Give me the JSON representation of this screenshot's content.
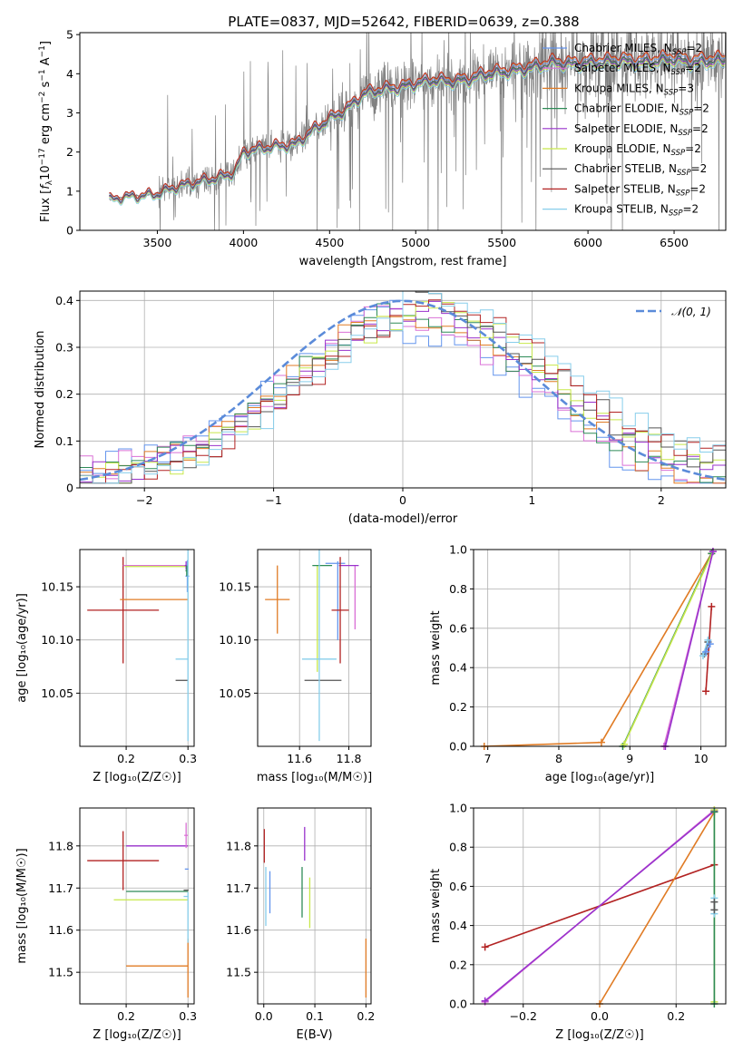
{
  "title": "PLATE=0837, MJD=52642, FIBERID=0639, z=0.388",
  "colors": {
    "chabrier_miles": "#6495ED",
    "salpeter_miles": "#DA70D6",
    "kroupa_miles": "#E07B24",
    "chabrier_elodie": "#2E8B57",
    "salpeter_elodie": "#9932CC",
    "kroupa_elodie": "#C7E84A",
    "chabrier_stelib": "#555555",
    "salpeter_stelib": "#B22222",
    "kroupa_stelib": "#87CEEB",
    "data": "#808080"
  },
  "legend": [
    {
      "label": "Chabrier MILES, N",
      "sub": "SSP",
      "val": "=2",
      "color_key": "chabrier_miles"
    },
    {
      "label": "Salpeter MILES, N",
      "sub": "SSP",
      "val": "=2",
      "color_key": "salpeter_miles"
    },
    {
      "label": "Kroupa MILES, N",
      "sub": "SSP",
      "val": "=3",
      "color_key": "kroupa_miles"
    },
    {
      "label": "Chabrier ELODIE, N",
      "sub": "SSP",
      "val": "=2",
      "color_key": "chabrier_elodie"
    },
    {
      "label": "Salpeter ELODIE, N",
      "sub": "SSP",
      "val": "=2",
      "color_key": "salpeter_elodie"
    },
    {
      "label": "Kroupa ELODIE, N",
      "sub": "SSP",
      "val": "=2",
      "color_key": "kroupa_elodie"
    },
    {
      "label": "Chabrier STELIB, N",
      "sub": "SSP",
      "val": "=2",
      "color_key": "chabrier_stelib"
    },
    {
      "label": "Salpeter STELIB, N",
      "sub": "SSP",
      "val": "=2",
      "color_key": "salpeter_stelib"
    },
    {
      "label": "Kroupa STELIB, N",
      "sub": "SSP",
      "val": "=2",
      "color_key": "kroupa_stelib"
    }
  ],
  "chart_data": [
    {
      "id": "spectrum",
      "type": "line",
      "xlabel": "wavelength [Angstrom, rest frame]",
      "ylabel": "Flux [f_λ 10^-17 erg cm^-2 s^-1 A^-1]",
      "xlim": [
        3050,
        6800
      ],
      "ylim": [
        0,
        5.05
      ],
      "xticks": [
        3500,
        4000,
        4500,
        5000,
        5500,
        6000,
        6500
      ],
      "yticks": [
        0,
        1,
        2,
        3,
        4,
        5
      ],
      "grid": false,
      "legend_position": "top-right",
      "data_range": [
        3220,
        6800
      ],
      "continuum": [
        [
          3220,
          0.78
        ],
        [
          3300,
          0.85
        ],
        [
          3400,
          0.88
        ],
        [
          3500,
          0.93
        ],
        [
          3600,
          1.1
        ],
        [
          3700,
          1.2
        ],
        [
          3800,
          1.3
        ],
        [
          3900,
          1.4
        ],
        [
          3950,
          1.5
        ],
        [
          4000,
          2.0
        ],
        [
          4100,
          2.1
        ],
        [
          4200,
          2.15
        ],
        [
          4300,
          2.2
        ],
        [
          4400,
          2.55
        ],
        [
          4500,
          2.85
        ],
        [
          4600,
          3.1
        ],
        [
          4700,
          3.5
        ],
        [
          4800,
          3.6
        ],
        [
          4900,
          3.65
        ],
        [
          5000,
          3.75
        ],
        [
          5100,
          3.85
        ],
        [
          5200,
          3.8
        ],
        [
          5300,
          3.85
        ],
        [
          5400,
          4.0
        ],
        [
          5500,
          4.05
        ],
        [
          5600,
          4.1
        ],
        [
          5700,
          4.2
        ],
        [
          5800,
          4.3
        ],
        [
          5900,
          4.25
        ],
        [
          6000,
          4.3
        ],
        [
          6100,
          4.32
        ],
        [
          6200,
          4.35
        ],
        [
          6300,
          4.3
        ],
        [
          6400,
          4.35
        ],
        [
          6500,
          4.4
        ],
        [
          6600,
          4.3
        ],
        [
          6700,
          4.35
        ],
        [
          6800,
          4.35
        ]
      ],
      "model_offsets": {
        "chabrier_miles": 0.05,
        "salpeter_miles": 0.0,
        "kroupa_miles": 0.08,
        "chabrier_elodie": -0.02,
        "salpeter_elodie": -0.05,
        "kroupa_elodie": -0.08,
        "chabrier_stelib": 0.0,
        "salpeter_stelib": 0.1,
        "kroupa_stelib": -0.12
      }
    },
    {
      "id": "residuals",
      "type": "step",
      "xlabel": "(data-model)/error",
      "ylabel": "Normed distribution",
      "xlim": [
        -2.5,
        2.5
      ],
      "ylim": [
        0,
        0.42
      ],
      "xticks": [
        -2,
        -1,
        0,
        1,
        2
      ],
      "yticks": [
        0.0,
        0.1,
        0.2,
        0.3,
        0.4
      ],
      "grid": true,
      "legend_position": "top-right",
      "gaussian_label": "𝒩(0, 1)",
      "gaussian_color": "#5B8BD9",
      "bin_width": 0.1,
      "base_hist": [
        0.035,
        0.04,
        0.045,
        0.045,
        0.05,
        0.045,
        0.05,
        0.055,
        0.06,
        0.065,
        0.09,
        0.1,
        0.11,
        0.12,
        0.13,
        0.145,
        0.16,
        0.17,
        0.185,
        0.19,
        0.21,
        0.215,
        0.225,
        0.23,
        0.24,
        0.26,
        0.28,
        0.3,
        0.32,
        0.33,
        0.35,
        0.36,
        0.35,
        0.36,
        0.34,
        0.35,
        0.34,
        0.33,
        0.32,
        0.33,
        0.34,
        0.34,
        0.33,
        0.33,
        0.32,
        0.32,
        0.3,
        0.28,
        0.27,
        0.25,
        0.23,
        0.21,
        0.2,
        0.18,
        0.16,
        0.15,
        0.14,
        0.12,
        0.1,
        0.09,
        0.09,
        0.08,
        0.07,
        0.06,
        0.05,
        0.05,
        0.05,
        0.04,
        0.03,
        0.03,
        0.03,
        0.03,
        0.03,
        0.04,
        0.05,
        0.06,
        0.07,
        0.08,
        0.09,
        0.1,
        0.11,
        0.12,
        0.13,
        0.14,
        0.14,
        0.15,
        0.17,
        0.18,
        0.19,
        0.2,
        0.21,
        0.22,
        0.23,
        0.24,
        0.25,
        0.26,
        0.27,
        0.29,
        0.3,
        0.31
      ]
    },
    {
      "id": "age_vs_Z",
      "type": "errorbar",
      "xlabel": "Z [log₁₀(Z/Z☉)]",
      "ylabel": "age  [log₁₀(age/yr)]",
      "xlim": [
        0.125,
        0.31
      ],
      "ylim": [
        10.0,
        10.185
      ],
      "xticks": [
        0.2,
        0.3
      ],
      "xticklabels": [
        "0.2",
        "0.3"
      ],
      "yticks": [
        10.05,
        10.1,
        10.15
      ],
      "yticklabels": [
        "10.05",
        "10.10",
        "10.15"
      ],
      "grid": true,
      "points": [
        {
          "c": "salpeter_stelib",
          "x": 0.195,
          "xe": 0.058,
          "y": 10.128,
          "ye": 0.05
        },
        {
          "c": "kroupa_miles",
          "x": 0.245,
          "xe": 0.055,
          "y": 10.138,
          "ye": 0.0
        },
        {
          "c": "salpeter_miles",
          "x": 0.247,
          "xe": 0.052,
          "y": 10.17,
          "ye": 0.0
        },
        {
          "c": "kroupa_elodie",
          "x": 0.248,
          "xe": 0.05,
          "y": 10.169,
          "ye": 0.0
        },
        {
          "c": "salpeter_elodie",
          "x": 0.297,
          "xe": 0.002,
          "y": 10.17,
          "ye": 0.004
        },
        {
          "c": "chabrier_miles",
          "x": 0.299,
          "xe": 0.003,
          "y": 10.16,
          "ye": 0.015
        },
        {
          "c": "chabrier_elodie",
          "x": 0.298,
          "xe": 0.002,
          "y": 10.165,
          "ye": 0.005
        },
        {
          "c": "chabrier_stelib",
          "x": 0.29,
          "xe": 0.01,
          "y": 10.062,
          "ye": 0.0
        },
        {
          "c": "kroupa_stelib",
          "x": 0.29,
          "xe": 0.01,
          "y": 10.082,
          "ye": 0.0
        },
        {
          "c": "kroupa_stelib",
          "x": 0.3,
          "xe": 0.0,
          "y": 10.1,
          "ye": 0.095
        }
      ]
    },
    {
      "id": "age_vs_mass",
      "type": "errorbar",
      "xlabel": "mass [log₁₀(M/M☉)]",
      "ylabel": "",
      "xlim": [
        11.43,
        11.89
      ],
      "ylim": [
        10.0,
        10.185
      ],
      "xticks": [
        11.6,
        11.8
      ],
      "xticklabels": [
        "11.6",
        "11.8"
      ],
      "yticks": [
        10.05,
        10.1,
        10.15
      ],
      "yticklabels": [
        "10.05",
        "10.10",
        "10.15"
      ],
      "grid": true,
      "points": [
        {
          "c": "kroupa_miles",
          "x": 11.51,
          "xe": 0.05,
          "y": 10.138,
          "ye": 0.032
        },
        {
          "c": "kroupa_elodie",
          "x": 11.672,
          "xe": 0.0,
          "y": 10.12,
          "ye": 0.05
        },
        {
          "c": "chabrier_elodie",
          "x": 11.692,
          "xe": 0.04,
          "y": 10.17,
          "ye": 0.0
        },
        {
          "c": "chabrier_miles",
          "x": 11.745,
          "xe": 0.04,
          "y": 10.172,
          "ye": 0.0
        },
        {
          "c": "chabrier_miles",
          "x": 11.755,
          "xe": 0.0,
          "y": 10.137,
          "ye": 0.037
        },
        {
          "c": "salpeter_miles",
          "x": 11.825,
          "xe": 0.0,
          "y": 10.14,
          "ye": 0.03
        },
        {
          "c": "salpeter_elodie",
          "x": 11.8,
          "xe": 0.04,
          "y": 10.17,
          "ye": 0.0
        },
        {
          "c": "salpeter_stelib",
          "x": 11.765,
          "xe": 0.035,
          "y": 10.128,
          "ye": 0.05
        },
        {
          "c": "chabrier_stelib",
          "x": 11.695,
          "xe": 0.075,
          "y": 10.062,
          "ye": 0.0
        },
        {
          "c": "kroupa_stelib",
          "x": 11.68,
          "xe": 0.0,
          "y": 10.1,
          "ye": 0.095
        },
        {
          "c": "kroupa_stelib",
          "x": 11.68,
          "xe": 0.07,
          "y": 10.082,
          "ye": 0.0
        }
      ]
    },
    {
      "id": "mass_weight_vs_age",
      "type": "line",
      "xlabel": "age  [log₁₀(age/yr)]",
      "ylabel": "mass weight",
      "xlim": [
        6.8,
        10.35
      ],
      "ylim": [
        0.0,
        1.0
      ],
      "xticks": [
        7,
        8,
        9,
        10
      ],
      "xticklabels": [
        "7",
        "8",
        "9",
        "10"
      ],
      "yticks": [
        0.0,
        0.2,
        0.4,
        0.6,
        0.8,
        1.0
      ],
      "yticklabels": [
        "0.0",
        "0.2",
        "0.4",
        "0.6",
        "0.8",
        "1.0"
      ],
      "grid": true,
      "series": [
        {
          "c": "kroupa_miles",
          "x": [
            6.95,
            8.6,
            10.15
          ],
          "y": [
            0.0,
            0.02,
            0.98
          ]
        },
        {
          "c": "chabrier_elodie",
          "x": [
            8.9,
            10.15
          ],
          "y": [
            0.0,
            0.98
          ]
        },
        {
          "c": "kroupa_elodie",
          "x": [
            8.92,
            10.17
          ],
          "y": [
            0.01,
            0.99
          ]
        },
        {
          "c": "salpeter_miles",
          "x": [
            9.48,
            10.17
          ],
          "y": [
            0.0,
            0.99
          ]
        },
        {
          "c": "salpeter_elodie",
          "x": [
            9.5,
            10.17
          ],
          "y": [
            0.0,
            0.99
          ]
        },
        {
          "c": "salpeter_stelib",
          "x": [
            10.07,
            10.15
          ],
          "y": [
            0.28,
            0.71
          ]
        },
        {
          "c": "chabrier_stelib",
          "x": [
            10.05,
            10.1
          ],
          "y": [
            0.47,
            0.53
          ]
        },
        {
          "c": "kroupa_stelib",
          "x": [
            10.03,
            10.1
          ],
          "y": [
            0.46,
            0.54
          ]
        },
        {
          "c": "chabrier_miles",
          "x": [
            10.07,
            10.13
          ],
          "y": [
            0.48,
            0.52
          ]
        }
      ]
    },
    {
      "id": "mass_vs_Z",
      "type": "errorbar",
      "xlabel": "Z [log₁₀(Z/Z☉)]",
      "ylabel": "mass [log₁₀(M/M☉)]",
      "xlim": [
        0.125,
        0.31
      ],
      "ylim": [
        11.425,
        11.89
      ],
      "xticks": [
        0.2,
        0.3
      ],
      "xticklabels": [
        "0.2",
        "0.3"
      ],
      "yticks": [
        11.5,
        11.6,
        11.7,
        11.8
      ],
      "yticklabels": [
        "11.5",
        "11.6",
        "11.7",
        "11.8"
      ],
      "grid": true,
      "points": [
        {
          "c": "salpeter_stelib",
          "x": 0.195,
          "xe": 0.058,
          "y": 11.765,
          "ye": 0.07
        },
        {
          "c": "salpeter_elodie",
          "x": 0.25,
          "xe": 0.05,
          "y": 11.8,
          "ye": 0.0
        },
        {
          "c": "chabrier_elodie",
          "x": 0.25,
          "xe": 0.05,
          "y": 11.692,
          "ye": 0.0
        },
        {
          "c": "kroupa_elodie",
          "x": 0.24,
          "xe": 0.06,
          "y": 11.672,
          "ye": 0.0
        },
        {
          "c": "kroupa_miles",
          "x": 0.25,
          "xe": 0.05,
          "y": 11.515,
          "ye": 0.0
        },
        {
          "c": "kroupa_miles",
          "x": 0.3,
          "xe": 0.0,
          "y": 11.51,
          "ye": 0.07
        },
        {
          "c": "salpeter_miles",
          "x": 0.297,
          "xe": 0.003,
          "y": 11.825,
          "ye": 0.03
        },
        {
          "c": "chabrier_miles",
          "x": 0.298,
          "xe": 0.003,
          "y": 11.745,
          "ye": 0.0
        },
        {
          "c": "chabrier_stelib",
          "x": 0.297,
          "xe": 0.004,
          "y": 11.695,
          "ye": 0.0
        },
        {
          "c": "kroupa_stelib",
          "x": 0.297,
          "xe": 0.004,
          "y": 11.68,
          "ye": 0.0
        },
        {
          "c": "kroupa_stelib",
          "x": 0.3,
          "xe": 0.0,
          "y": 11.63,
          "ye": 0.06
        }
      ]
    },
    {
      "id": "mass_vs_ebv",
      "type": "errorbar",
      "xlabel": "E(B-V)",
      "ylabel": "",
      "xlim": [
        -0.012,
        0.21
      ],
      "ylim": [
        11.425,
        11.89
      ],
      "xticks": [
        0.0,
        0.1,
        0.2
      ],
      "xticklabels": [
        "0.0",
        "0.1",
        "0.2"
      ],
      "yticks": [
        11.5,
        11.6,
        11.7,
        11.8
      ],
      "yticklabels": [
        "11.5",
        "11.6",
        "11.7",
        "11.8"
      ],
      "grid": true,
      "points": [
        {
          "c": "salpeter_stelib",
          "x": 0.001,
          "xe": 0.0,
          "y": 11.8,
          "ye": 0.04
        },
        {
          "c": "kroupa_stelib",
          "x": 0.004,
          "xe": 0.0,
          "y": 11.68,
          "ye": 0.07
        },
        {
          "c": "chabrier_miles",
          "x": 0.012,
          "xe": 0.0,
          "y": 11.69,
          "ye": 0.05
        },
        {
          "c": "chabrier_elodie",
          "x": 0.075,
          "xe": 0.0,
          "y": 11.69,
          "ye": 0.06
        },
        {
          "c": "salpeter_elodie",
          "x": 0.08,
          "xe": 0.0,
          "y": 11.805,
          "ye": 0.04
        },
        {
          "c": "kroupa_elodie",
          "x": 0.09,
          "xe": 0.0,
          "y": 11.665,
          "ye": 0.06
        },
        {
          "c": "kroupa_miles",
          "x": 0.2,
          "xe": 0.0,
          "y": 11.51,
          "ye": 0.07
        }
      ]
    },
    {
      "id": "mass_weight_vs_Z",
      "type": "line",
      "xlabel": "Z [log₁₀(Z/Z☉)]",
      "ylabel": "mass weight",
      "xlim": [
        -0.33,
        0.33
      ],
      "ylim": [
        0.0,
        1.0
      ],
      "xticks": [
        -0.2,
        0.0,
        0.2
      ],
      "xticklabels": [
        "−0.2",
        "0.0",
        "0.2"
      ],
      "yticks": [
        0.0,
        0.2,
        0.4,
        0.6,
        0.8,
        1.0
      ],
      "yticklabels": [
        "0.0",
        "0.2",
        "0.4",
        "0.6",
        "0.8",
        "1.0"
      ],
      "grid": true,
      "series": [
        {
          "c": "salpeter_stelib",
          "x": [
            -0.3,
            0.3
          ],
          "y": [
            0.29,
            0.71
          ]
        },
        {
          "c": "salpeter_miles",
          "x": [
            -0.3,
            0.3
          ],
          "y": [
            0.01,
            0.99
          ]
        },
        {
          "c": "salpeter_elodie",
          "x": [
            -0.3,
            0.3
          ],
          "y": [
            0.015,
            0.985
          ]
        },
        {
          "c": "kroupa_miles",
          "x": [
            0.0,
            0.3
          ],
          "y": [
            0.0,
            0.98
          ]
        },
        {
          "c": "kroupa_elodie",
          "x": [
            0.3,
            0.3
          ],
          "y": [
            0.01,
            0.99
          ]
        },
        {
          "c": "chabrier_elodie",
          "x": [
            0.3,
            0.3
          ],
          "y": [
            0.0,
            0.98
          ]
        },
        {
          "c": "kroupa_stelib",
          "x": [
            0.3,
            0.3
          ],
          "y": [
            0.46,
            0.54
          ]
        },
        {
          "c": "chabrier_stelib",
          "x": [
            0.3,
            0.3
          ],
          "y": [
            0.48,
            0.52
          ]
        }
      ]
    }
  ]
}
